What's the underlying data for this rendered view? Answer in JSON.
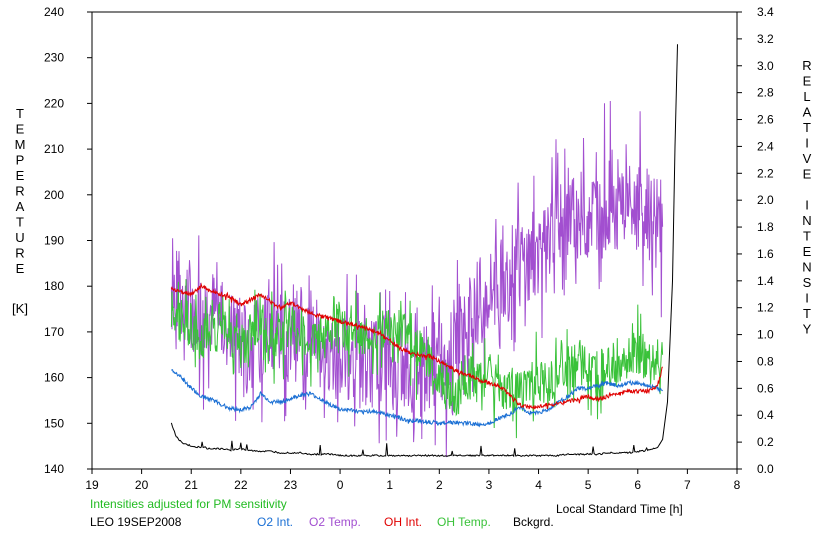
{
  "chart_data": {
    "type": "line",
    "title": "",
    "xlabel": "Local Standard Time [h]",
    "ylabel_left_letters": [
      "T",
      "E",
      "M",
      "P",
      "E",
      "R",
      "A",
      "T",
      "U",
      "R",
      "E"
    ],
    "ylabel_left_unit": "[K]",
    "ylabel_right_letters": [
      "R",
      "E",
      "L",
      "A",
      "T",
      "I",
      "V",
      "E",
      " ",
      "I",
      "N",
      "T",
      "E",
      "N",
      "S",
      "I",
      "T",
      "Y"
    ],
    "xlim": [
      19,
      32
    ],
    "x_ticks": [
      19,
      20,
      21,
      22,
      23,
      24,
      25,
      26,
      27,
      28,
      29,
      30,
      31,
      32
    ],
    "x_tick_labels": [
      "19",
      "20",
      "21",
      "22",
      "23",
      "0",
      "1",
      "2",
      "3",
      "4",
      "5",
      "6",
      "7",
      "8"
    ],
    "y_left_lim": [
      140,
      240
    ],
    "y_left_ticks": [
      140,
      150,
      160,
      170,
      180,
      190,
      200,
      210,
      220,
      230,
      240
    ],
    "y_right_lim": [
      0.0,
      3.4
    ],
    "y_right_ticks": [
      "0.0",
      "0.2",
      "0.4",
      "0.6",
      "0.8",
      "1.0",
      "1.2",
      "1.4",
      "1.6",
      "1.8",
      "2.0",
      "2.2",
      "2.4",
      "2.6",
      "2.8",
      "3.0",
      "3.2",
      "3.4"
    ],
    "grid": false,
    "note": "Intensities adjusted for PM sensitivity",
    "station": "LEO 19SEP2008",
    "colors": {
      "o2_int": "#1a6fd4",
      "o2_temp": "#a24fd0",
      "oh_int": "#e00000",
      "oh_temp": "#3ac23a",
      "bckgrd": "#000000",
      "note": "#22bb22"
    },
    "series": [
      {
        "name": "O2 Int.",
        "axis": "right",
        "x": [
          20.6,
          20.8,
          21.0,
          21.2,
          21.4,
          21.6,
          21.8,
          22.0,
          22.2,
          22.4,
          22.6,
          22.8,
          23.0,
          23.2,
          23.4,
          23.6,
          23.8,
          24.0,
          24.2,
          24.4,
          24.6,
          24.8,
          25.0,
          25.2,
          25.4,
          25.6,
          25.8,
          26.0,
          26.2,
          26.4,
          26.6,
          26.8,
          27.0,
          27.2,
          27.4,
          27.6,
          27.8,
          28.0,
          28.2,
          28.4,
          28.6,
          28.8,
          29.0,
          29.2,
          29.4,
          29.6,
          29.8,
          30.0,
          30.2,
          30.4,
          30.5
        ],
        "y": [
          0.74,
          0.68,
          0.6,
          0.54,
          0.52,
          0.48,
          0.45,
          0.44,
          0.46,
          0.56,
          0.5,
          0.5,
          0.52,
          0.55,
          0.56,
          0.52,
          0.48,
          0.44,
          0.44,
          0.42,
          0.43,
          0.42,
          0.4,
          0.38,
          0.36,
          0.36,
          0.35,
          0.34,
          0.35,
          0.34,
          0.34,
          0.33,
          0.34,
          0.38,
          0.4,
          0.46,
          0.42,
          0.42,
          0.44,
          0.5,
          0.54,
          0.6,
          0.6,
          0.62,
          0.64,
          0.62,
          0.64,
          0.64,
          0.62,
          0.6,
          0.58
        ]
      },
      {
        "name": "O2 Temp.",
        "axis": "left",
        "x": [
          20.6,
          20.8,
          21.0,
          21.2,
          21.4,
          21.6,
          21.8,
          22.0,
          22.2,
          22.4,
          22.6,
          22.8,
          23.0,
          23.2,
          23.4,
          23.6,
          23.8,
          24.0,
          24.2,
          24.4,
          24.6,
          24.8,
          25.0,
          25.2,
          25.4,
          25.6,
          25.8,
          26.0,
          26.2,
          26.4,
          26.6,
          26.8,
          27.0,
          27.2,
          27.4,
          27.6,
          27.8,
          28.0,
          28.2,
          28.4,
          28.6,
          28.8,
          29.0,
          29.2,
          29.4,
          29.6,
          29.8,
          30.0,
          30.2,
          30.4,
          30.5
        ],
        "y": [
          180,
          178,
          176,
          174,
          175,
          172,
          170,
          168,
          166,
          168,
          172,
          170,
          168,
          170,
          168,
          166,
          166,
          164,
          165,
          164,
          163,
          164,
          163,
          162,
          161,
          162,
          163,
          164,
          166,
          170,
          172,
          175,
          178,
          180,
          182,
          184,
          186,
          188,
          190,
          192,
          194,
          195,
          196,
          197,
          198,
          198,
          197,
          196,
          195,
          194,
          193
        ]
      },
      {
        "name": "OH Int.",
        "axis": "right",
        "x": [
          20.6,
          20.8,
          21.0,
          21.2,
          21.4,
          21.6,
          21.8,
          22.0,
          22.2,
          22.4,
          22.6,
          22.8,
          23.0,
          23.2,
          23.4,
          23.6,
          23.8,
          24.0,
          24.2,
          24.4,
          24.6,
          24.8,
          25.0,
          25.2,
          25.4,
          25.6,
          25.8,
          26.0,
          26.2,
          26.4,
          26.6,
          26.8,
          27.0,
          27.2,
          27.4,
          27.6,
          27.8,
          28.0,
          28.2,
          28.4,
          28.6,
          28.8,
          29.0,
          29.2,
          29.4,
          29.6,
          29.8,
          30.0,
          30.2,
          30.4,
          30.5
        ],
        "y": [
          1.34,
          1.32,
          1.3,
          1.36,
          1.32,
          1.3,
          1.28,
          1.22,
          1.26,
          1.3,
          1.24,
          1.2,
          1.24,
          1.2,
          1.16,
          1.14,
          1.12,
          1.1,
          1.08,
          1.06,
          1.04,
          1.0,
          0.96,
          0.9,
          0.86,
          0.84,
          0.84,
          0.8,
          0.76,
          0.72,
          0.7,
          0.66,
          0.64,
          0.62,
          0.56,
          0.48,
          0.46,
          0.46,
          0.48,
          0.48,
          0.5,
          0.52,
          0.54,
          0.52,
          0.54,
          0.56,
          0.58,
          0.58,
          0.58,
          0.62,
          0.76
        ]
      },
      {
        "name": "OH Temp.",
        "axis": "left",
        "x": [
          20.6,
          20.8,
          21.0,
          21.2,
          21.4,
          21.6,
          21.8,
          22.0,
          22.2,
          22.4,
          22.6,
          22.8,
          23.0,
          23.2,
          23.4,
          23.6,
          23.8,
          24.0,
          24.2,
          24.4,
          24.6,
          24.8,
          25.0,
          25.2,
          25.4,
          25.6,
          25.8,
          26.0,
          26.2,
          26.4,
          26.6,
          26.8,
          27.0,
          27.2,
          27.4,
          27.6,
          27.8,
          28.0,
          28.2,
          28.4,
          28.6,
          28.8,
          29.0,
          29.2,
          29.4,
          29.6,
          29.8,
          30.0,
          30.2,
          30.4,
          30.5
        ],
        "y": [
          175,
          172,
          170,
          168,
          170,
          172,
          168,
          166,
          170,
          172,
          168,
          170,
          172,
          170,
          168,
          168,
          170,
          172,
          170,
          170,
          168,
          170,
          172,
          170,
          168,
          166,
          164,
          160,
          158,
          156,
          160,
          158,
          160,
          158,
          158,
          156,
          158,
          160,
          158,
          160,
          162,
          164,
          160,
          162,
          164,
          160,
          165,
          166,
          162,
          164,
          165
        ]
      },
      {
        "name": "Bckgrd.",
        "axis": "right",
        "x": [
          20.6,
          20.7,
          20.8,
          21.0,
          21.2,
          21.4,
          21.6,
          21.8,
          22.0,
          22.2,
          22.4,
          22.6,
          22.8,
          23.0,
          23.2,
          23.4,
          23.6,
          23.8,
          24.0,
          24.2,
          24.4,
          24.6,
          24.8,
          25.0,
          25.2,
          25.4,
          25.6,
          25.8,
          26.0,
          26.2,
          26.4,
          26.6,
          26.8,
          27.0,
          27.2,
          27.4,
          27.6,
          27.8,
          28.0,
          28.2,
          28.4,
          28.6,
          28.8,
          29.0,
          29.2,
          29.4,
          29.6,
          29.8,
          30.0,
          30.2,
          30.4,
          30.5,
          30.6,
          30.7,
          30.75,
          30.8
        ],
        "y": [
          0.34,
          0.24,
          0.2,
          0.17,
          0.16,
          0.15,
          0.15,
          0.14,
          0.15,
          0.14,
          0.13,
          0.13,
          0.12,
          0.12,
          0.12,
          0.11,
          0.11,
          0.11,
          0.1,
          0.1,
          0.1,
          0.1,
          0.1,
          0.1,
          0.1,
          0.1,
          0.1,
          0.1,
          0.1,
          0.1,
          0.1,
          0.1,
          0.1,
          0.1,
          0.1,
          0.1,
          0.1,
          0.1,
          0.1,
          0.1,
          0.1,
          0.11,
          0.11,
          0.11,
          0.11,
          0.12,
          0.12,
          0.12,
          0.13,
          0.14,
          0.16,
          0.22,
          0.5,
          1.4,
          2.4,
          3.16
        ]
      }
    ],
    "legend": [
      "O2 Int.",
      "O2 Temp.",
      "OH Int.",
      "OH Temp.",
      "Bckgrd."
    ]
  }
}
